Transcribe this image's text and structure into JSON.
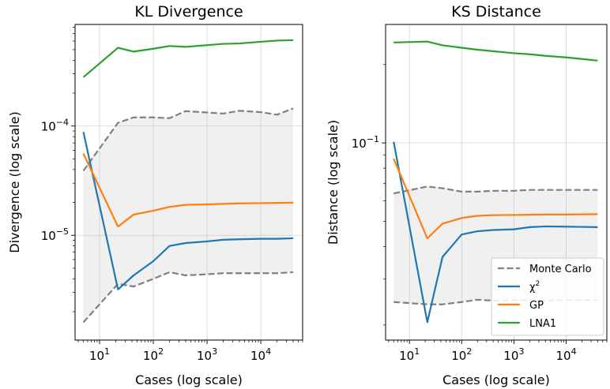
{
  "chart_data": [
    {
      "type": "line",
      "title": "KL Divergence",
      "xlabel": "Cases (log scale)",
      "ylabel": "Divergence (log scale)",
      "xscale": "log",
      "yscale": "log",
      "xlim": [
        3.5,
        60000
      ],
      "ylim": [
        1.1e-06,
        0.00085
      ],
      "xtick_labels": [
        {
          "base": "10",
          "exp": "1",
          "value": 10
        },
        {
          "base": "10",
          "exp": "2",
          "value": 100
        },
        {
          "base": "10",
          "exp": "3",
          "value": 1000
        },
        {
          "base": "10",
          "exp": "4",
          "value": 10000
        }
      ],
      "ytick_labels": [
        {
          "base": "10",
          "exp": "−5",
          "value": 1e-05
        },
        {
          "base": "10",
          "exp": "−4",
          "value": 0.0001
        }
      ],
      "grid": true,
      "band": {
        "color": "#f0f0f0",
        "x": [
          5,
          22,
          43,
          100,
          200,
          400,
          1000,
          2000,
          4000,
          10000,
          20000,
          40000
        ],
        "lower": [
          1.6e-06,
          3.6e-06,
          3.4e-06,
          4e-06,
          4.6e-06,
          4.3e-06,
          4.4e-06,
          4.5e-06,
          4.5e-06,
          4.5e-06,
          4.5e-06,
          4.6e-06
        ],
        "upper": [
          3.9e-05,
          0.000107,
          0.00012,
          0.00012,
          0.000118,
          0.000137,
          0.000133,
          0.00013,
          0.000138,
          0.000134,
          0.000127,
          0.000145
        ]
      },
      "series": [
        {
          "key": "mc_upper",
          "color": "#808080",
          "dash": true,
          "x": [
            5,
            22,
            43,
            100,
            200,
            400,
            1000,
            2000,
            4000,
            10000,
            20000,
            40000
          ],
          "y": [
            3.9e-05,
            0.000107,
            0.00012,
            0.00012,
            0.000118,
            0.000137,
            0.000133,
            0.00013,
            0.000138,
            0.000134,
            0.000127,
            0.000145
          ]
        },
        {
          "key": "mc_lower",
          "color": "#808080",
          "dash": true,
          "x": [
            5,
            22,
            43,
            100,
            200,
            400,
            1000,
            2000,
            4000,
            10000,
            20000,
            40000
          ],
          "y": [
            1.6e-06,
            3.6e-06,
            3.4e-06,
            4e-06,
            4.6e-06,
            4.3e-06,
            4.4e-06,
            4.5e-06,
            4.5e-06,
            4.5e-06,
            4.5e-06,
            4.6e-06
          ]
        },
        {
          "key": "chi2",
          "color": "#1f77b4",
          "dash": false,
          "x": [
            5,
            22,
            43,
            100,
            200,
            400,
            1000,
            2000,
            4000,
            10000,
            20000,
            40000
          ],
          "y": [
            8.8e-05,
            3.2e-06,
            4.3e-06,
            5.8e-06,
            8e-06,
            8.5e-06,
            8.8e-06,
            9.1e-06,
            9.2e-06,
            9.3e-06,
            9.3e-06,
            9.4e-06
          ]
        },
        {
          "key": "gp",
          "color": "#ff7f0e",
          "dash": false,
          "x": [
            5,
            22,
            43,
            100,
            200,
            400,
            1000,
            2000,
            4000,
            10000,
            20000,
            40000
          ],
          "y": [
            5.6e-05,
            1.2e-05,
            1.55e-05,
            1.68e-05,
            1.82e-05,
            1.9e-05,
            1.92e-05,
            1.94e-05,
            1.96e-05,
            1.97e-05,
            1.98e-05,
            1.99e-05
          ]
        },
        {
          "key": "lna1",
          "color": "#2ca02c",
          "dash": false,
          "x": [
            5,
            22,
            43,
            100,
            200,
            400,
            1000,
            2000,
            4000,
            10000,
            20000,
            40000
          ],
          "y": [
            0.00028,
            0.00052,
            0.00048,
            0.00051,
            0.00054,
            0.00053,
            0.00055,
            0.000565,
            0.00057,
            0.00059,
            0.000605,
            0.00061
          ]
        }
      ]
    },
    {
      "type": "line",
      "title": "KS Distance",
      "xlabel": "Cases (log scale)",
      "ylabel": "Distance (log scale)",
      "xscale": "log",
      "yscale": "log",
      "xlim": [
        3.5,
        60000
      ],
      "ylim": [
        0.0175,
        0.285
      ],
      "xtick_labels": [
        {
          "base": "10",
          "exp": "1",
          "value": 10
        },
        {
          "base": "10",
          "exp": "2",
          "value": 100
        },
        {
          "base": "10",
          "exp": "3",
          "value": 1000
        },
        {
          "base": "10",
          "exp": "4",
          "value": 10000
        }
      ],
      "ytick_labels": [
        {
          "base": "10",
          "exp": "−1",
          "value": 0.1
        }
      ],
      "grid": true,
      "band": {
        "color": "#f0f0f0",
        "x": [
          5,
          22,
          43,
          100,
          200,
          400,
          1000,
          2000,
          4000,
          10000,
          20000,
          40000
        ],
        "lower": [
          0.0245,
          0.024,
          0.024,
          0.0245,
          0.025,
          0.0248,
          0.0249,
          0.0249,
          0.0248,
          0.0249,
          0.0249,
          0.0249
        ],
        "upper": [
          0.064,
          0.068,
          0.067,
          0.065,
          0.065,
          0.0655,
          0.0655,
          0.066,
          0.066,
          0.066,
          0.066,
          0.066
        ]
      },
      "series": [
        {
          "key": "mc_upper",
          "color": "#808080",
          "dash": true,
          "x": [
            5,
            22,
            43,
            100,
            200,
            400,
            1000,
            2000,
            4000,
            10000,
            20000,
            40000
          ],
          "y": [
            0.064,
            0.068,
            0.067,
            0.065,
            0.065,
            0.0655,
            0.0655,
            0.066,
            0.066,
            0.066,
            0.066,
            0.066
          ]
        },
        {
          "key": "mc_lower",
          "color": "#808080",
          "dash": true,
          "x": [
            5,
            22,
            43,
            100,
            200,
            400,
            1000,
            2000,
            4000,
            10000,
            20000,
            40000
          ],
          "y": [
            0.0245,
            0.024,
            0.024,
            0.0245,
            0.025,
            0.0248,
            0.0249,
            0.0249,
            0.0248,
            0.0249,
            0.0249,
            0.0249
          ]
        },
        {
          "key": "chi2",
          "color": "#1f77b4",
          "dash": false,
          "x": [
            5,
            22,
            43,
            100,
            200,
            400,
            1000,
            2000,
            4000,
            10000,
            20000,
            40000
          ],
          "y": [
            0.101,
            0.0205,
            0.0365,
            0.0445,
            0.0458,
            0.0463,
            0.0466,
            0.0475,
            0.0478,
            0.0477,
            0.0476,
            0.0475
          ]
        },
        {
          "key": "gp",
          "color": "#ff7f0e",
          "dash": false,
          "x": [
            5,
            22,
            43,
            100,
            200,
            400,
            1000,
            2000,
            4000,
            10000,
            20000,
            40000
          ],
          "y": [
            0.087,
            0.043,
            0.049,
            0.0515,
            0.0525,
            0.0528,
            0.0529,
            0.053,
            0.0531,
            0.0531,
            0.0532,
            0.0533
          ]
        },
        {
          "key": "lna1",
          "color": "#2ca02c",
          "dash": false,
          "x": [
            5,
            22,
            43,
            100,
            200,
            400,
            1000,
            2000,
            4000,
            10000,
            20000,
            40000
          ],
          "y": [
            0.243,
            0.245,
            0.237,
            0.232,
            0.228,
            0.225,
            0.221,
            0.219,
            0.216,
            0.213,
            0.21,
            0.207
          ]
        }
      ],
      "legend": {
        "placement": "lower-right",
        "entries": [
          {
            "series": "mc_upper",
            "label": "Monte Carlo",
            "sup": ""
          },
          {
            "series": "chi2",
            "label": "χ",
            "sup": "2"
          },
          {
            "series": "gp",
            "label": "GP",
            "sup": ""
          },
          {
            "series": "lna1",
            "label": "LNA1",
            "sup": ""
          }
        ]
      }
    }
  ]
}
